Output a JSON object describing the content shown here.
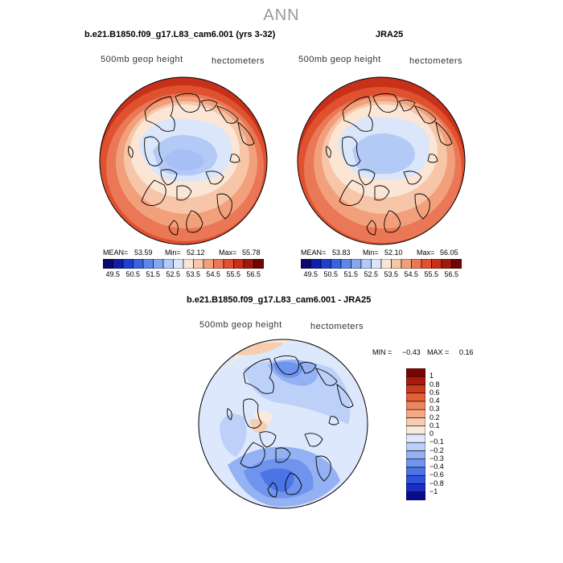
{
  "page": {
    "title": "ANN"
  },
  "panels": {
    "left": {
      "title": "b.e21.B1850.f09_g17.L83_cam6.001 (yrs 3-32)",
      "variable": "500mb geop height",
      "units": "hectometers",
      "mean_label": "MEAN=",
      "mean": "53.59",
      "min_label": "Min=",
      "min": "52.12",
      "max_label": "Max=",
      "max": "55.78"
    },
    "right": {
      "title": "JRA25",
      "variable": "500mb geop height",
      "units": "hectometers",
      "mean_label": "MEAN=",
      "mean": "53.83",
      "min_label": "Min=",
      "min": "52.10",
      "max_label": "Max=",
      "max": "56.05"
    },
    "diff": {
      "title": "b.e21.B1850.f09_g17.L83_cam6.001 - JRA25",
      "variable": "500mb geop height",
      "units": "hectometers",
      "min_label": "MIN =",
      "min": "−0.43",
      "max_label": "MAX =",
      "max": "0.16"
    }
  },
  "colorbar_top": {
    "colors": [
      "#0a0a6e",
      "#0f1fa8",
      "#1e3fcf",
      "#3a63e0",
      "#5f86ea",
      "#86a6f0",
      "#b3c9f6",
      "#dbe6fb",
      "#fbe6d6",
      "#f7c6a8",
      "#f2a07c",
      "#ea7755",
      "#e0512f",
      "#c8301a",
      "#9e1a0c",
      "#6e0505"
    ],
    "labels": [
      "49.5",
      "50.5",
      "51.5",
      "52.5",
      "53.5",
      "54.5",
      "55.5",
      "56.5"
    ]
  },
  "colorbar_diff": {
    "colors": [
      "#0a0a8e",
      "#1a2fc4",
      "#2f52dc",
      "#4b74e6",
      "#6f94ee",
      "#93b1f3",
      "#bcd0f8",
      "#dde8fc",
      "#fbeadb",
      "#f7cdb0",
      "#f2ab85",
      "#ec865c",
      "#e35f36",
      "#cc3a1c",
      "#a81a0a",
      "#7a0505"
    ],
    "labels": [
      "1",
      "0.8",
      "0.6",
      "0.4",
      "0.3",
      "0.2",
      "0.1",
      "0",
      "−0.1",
      "−0.2",
      "−0.3",
      "−0.4",
      "−0.6",
      "−0.8",
      "−1"
    ]
  },
  "chart_data": [
    {
      "type": "heatmap",
      "title": "b.e21.B1850.f09_g17.L83_cam6.001 (yrs 3-32)",
      "projection": "north polar stereographic",
      "variable": "500mb geop height",
      "units": "hectometers",
      "levels": [
        49.5,
        50,
        50.5,
        51,
        51.5,
        52,
        52.5,
        53,
        53.5,
        54,
        54.5,
        55,
        55.5,
        56,
        56.5
      ],
      "stats": {
        "mean": 53.59,
        "min": 52.12,
        "max": 55.78
      }
    },
    {
      "type": "heatmap",
      "title": "JRA25",
      "projection": "north polar stereographic",
      "variable": "500mb geop height",
      "units": "hectometers",
      "levels": [
        49.5,
        50,
        50.5,
        51,
        51.5,
        52,
        52.5,
        53,
        53.5,
        54,
        54.5,
        55,
        55.5,
        56,
        56.5
      ],
      "stats": {
        "mean": 53.83,
        "min": 52.1,
        "max": 56.05
      }
    },
    {
      "type": "heatmap",
      "title": "b.e21.B1850.f09_g17.L83_cam6.001 - JRA25",
      "projection": "north polar stereographic",
      "variable": "500mb geop height",
      "units": "hectometers",
      "levels": [
        -1,
        -0.8,
        -0.6,
        -0.4,
        -0.3,
        -0.2,
        -0.1,
        0,
        0.1,
        0.2,
        0.3,
        0.4,
        0.6,
        0.8,
        1
      ],
      "stats": {
        "min": -0.43,
        "max": 0.16
      }
    }
  ]
}
